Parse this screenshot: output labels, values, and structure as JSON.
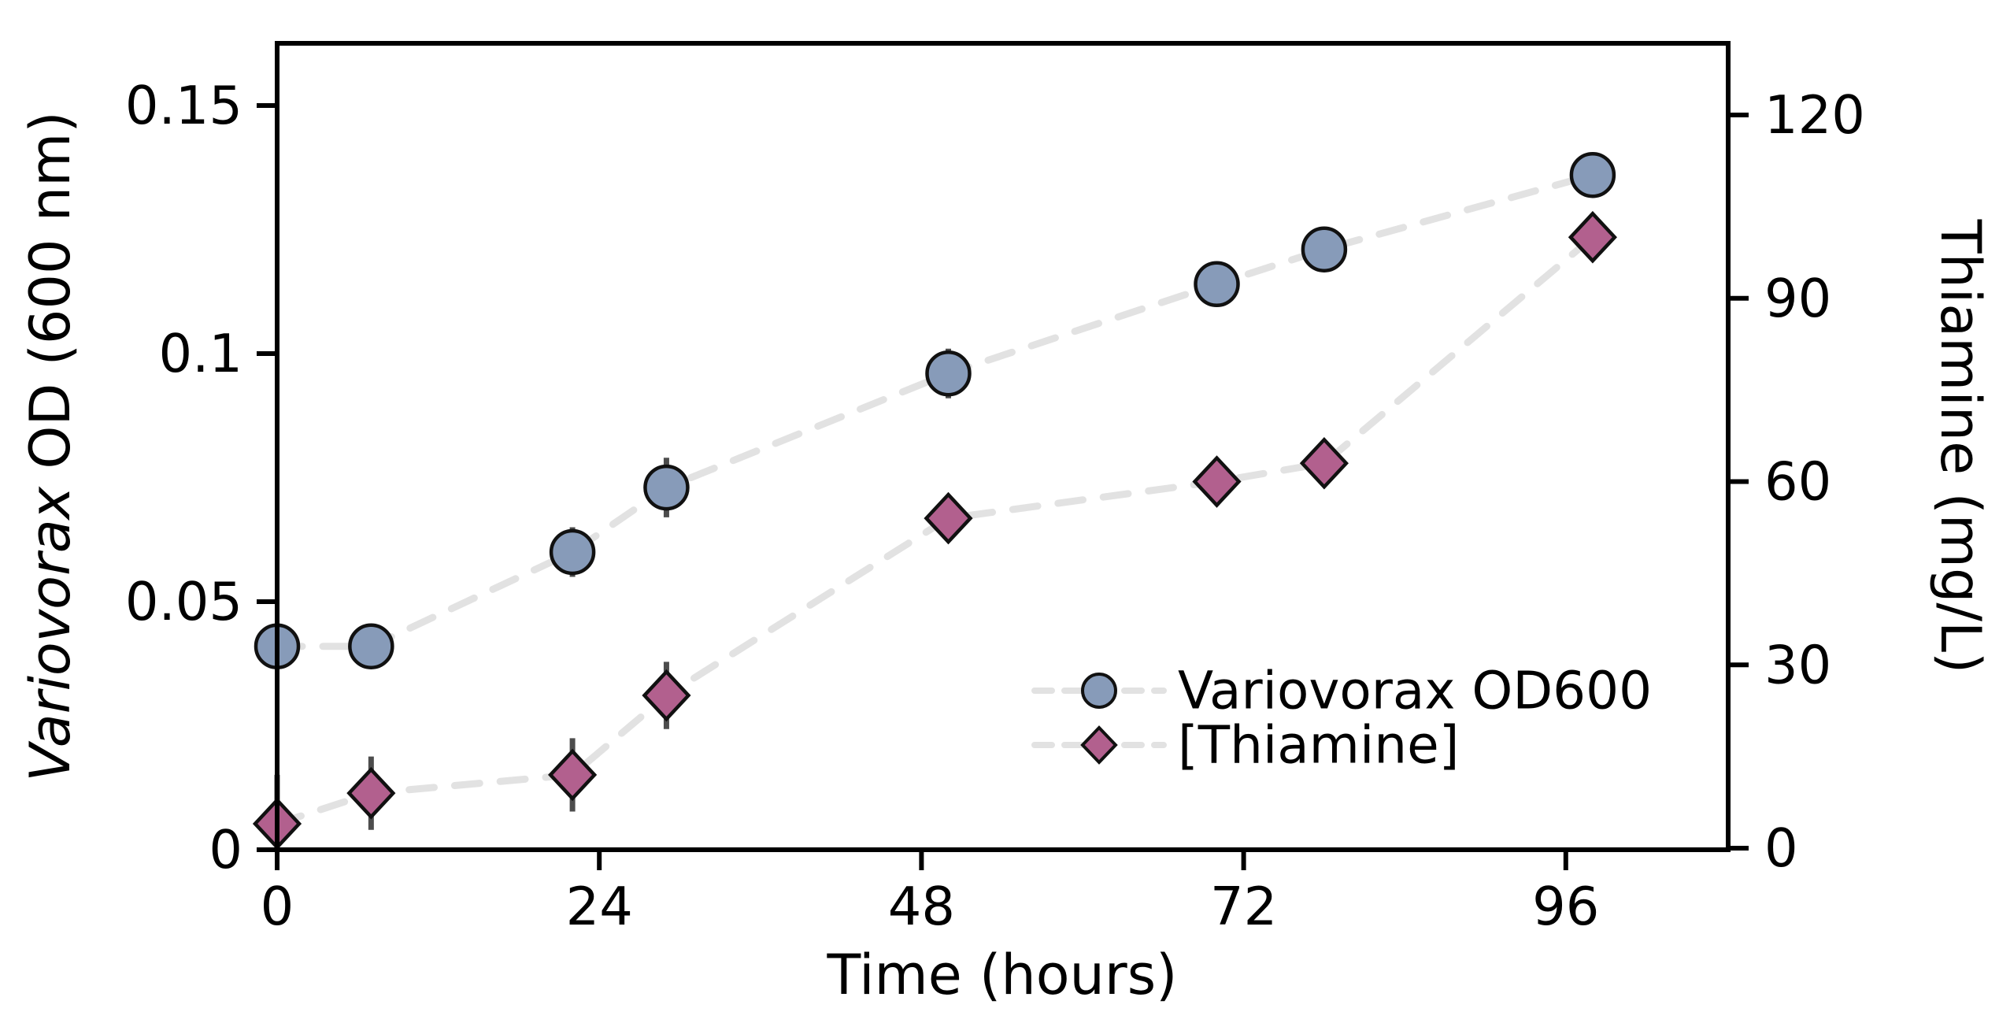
{
  "figure": {
    "xlabel": "Time (hours)",
    "ylabel_left_italic": "Variovorax",
    "ylabel_left_rest": " OD (600 nm)",
    "ylabel_right": "Thiamine (mg/L)",
    "colors": {
      "od_marker_fill": "#879BB9",
      "thiamine_marker_fill": "#B2608E",
      "marker_stroke": "#111111",
      "connector_dash": "#E2E2E2",
      "error_bar": "#4D4D4D",
      "axis": "#000000"
    }
  },
  "chart_data": {
    "type": "line",
    "title": "",
    "xlabel": "Time (hours)",
    "ylabel_left": "Variovorax OD (600 nm)",
    "ylabel_right": "Thiamine (mg/L)",
    "x": [
      0,
      7,
      22,
      29,
      50,
      70,
      78,
      98
    ],
    "x_ticks": [
      0,
      24,
      48,
      72,
      96
    ],
    "xlim": [
      0,
      108
    ],
    "left_ticks": [
      "0",
      "0.05",
      "0.1",
      "0.15"
    ],
    "left_ylim": [
      0,
      0.1626
    ],
    "right_ticks": [
      "0",
      "30",
      "60",
      "90",
      "120"
    ],
    "right_ylim": [
      0,
      131.7
    ],
    "grid": false,
    "legend_position": "inside lower-right",
    "line_style": "dashed light-gray connectors",
    "series": [
      {
        "name": "Variovorax OD600",
        "axis": "left",
        "marker": "circle",
        "values": [
          0.041,
          0.041,
          0.06,
          0.073,
          0.096,
          0.114,
          0.121,
          0.136
        ],
        "errors": [
          0.002,
          0.002,
          0.005,
          0.006,
          0.005,
          0.003,
          0.002,
          0.003
        ]
      },
      {
        "name": "[Thiamine]",
        "axis": "right",
        "marker": "diamond",
        "values": [
          4,
          9,
          12,
          25,
          54,
          60,
          63,
          100
        ],
        "errors": [
          8,
          6,
          6,
          5.5,
          0,
          0,
          0,
          0
        ]
      }
    ]
  }
}
